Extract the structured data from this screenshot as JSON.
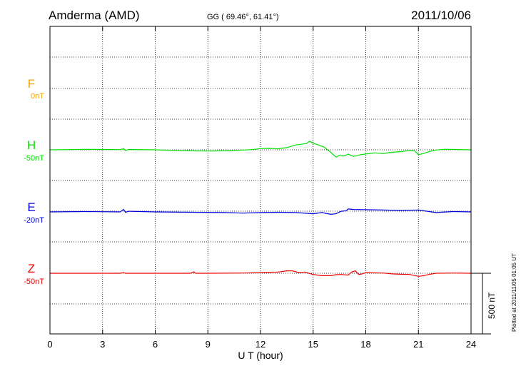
{
  "header": {
    "station": "Amderma (AMD)",
    "coords": "GG ( 69.46°,  61.41°)",
    "date": "2011/10/06"
  },
  "plotted_note": "Plotted at 2011/11/05 01:05 UT",
  "scale_label": "500 nT",
  "colors": {
    "F": "#f5a000",
    "H": "#00e000",
    "E": "#0000dd",
    "Z": "#ee0000",
    "grid": "#000000"
  },
  "chart_data": {
    "type": "line",
    "title": "",
    "xlabel": "U T (hour)",
    "ylabel": "",
    "xlim": [
      0,
      24
    ],
    "x_ticks": [
      "0",
      "3",
      "6",
      "9",
      "12",
      "15",
      "18",
      "21",
      "24"
    ],
    "grid": true,
    "series": [
      {
        "name": "F",
        "baseline": "0nT",
        "color": "#f5a000",
        "x": [],
        "values": []
      },
      {
        "name": "H",
        "baseline": "-50nT",
        "color": "#00e000",
        "x": [
          0,
          1,
          2,
          3,
          4,
          4.2,
          4.3,
          4.5,
          6,
          8,
          9,
          10,
          11,
          11.5,
          12,
          12.5,
          13,
          13.5,
          14,
          14.3,
          14.6,
          14.8,
          15,
          15.3,
          15.6,
          16,
          16.3,
          16.5,
          16.8,
          17,
          17.3,
          17.7,
          18,
          18.5,
          19,
          19.5,
          20,
          20.5,
          20.8,
          21,
          21.3,
          21.6,
          22,
          22.5,
          23,
          24
        ],
        "values": [
          0,
          2,
          4,
          3,
          2,
          10,
          -5,
          3,
          0,
          -8,
          -10,
          -8,
          -2,
          2,
          10,
          12,
          8,
          18,
          40,
          45,
          52,
          70,
          55,
          40,
          25,
          -20,
          -60,
          -45,
          -50,
          -35,
          -55,
          -40,
          -35,
          -25,
          -30,
          -20,
          -15,
          -5,
          -10,
          -40,
          -30,
          -15,
          -2,
          5,
          3,
          0
        ]
      },
      {
        "name": "E",
        "baseline": "-20nT",
        "color": "#0000dd",
        "x": [
          0,
          2,
          4,
          4.2,
          4.3,
          4.5,
          6,
          8,
          10,
          11,
          12,
          13,
          14,
          15,
          15.5,
          16,
          16.3,
          16.6,
          16.9,
          17,
          17.3,
          18,
          19,
          20,
          21,
          21.5,
          22,
          23,
          24
        ],
        "values": [
          0,
          3,
          0,
          20,
          -3,
          5,
          0,
          -3,
          -5,
          -10,
          -5,
          -3,
          -5,
          -15,
          -5,
          -20,
          -15,
          5,
          10,
          25,
          20,
          18,
          15,
          12,
          15,
          5,
          -5,
          3,
          0
        ]
      },
      {
        "name": "Z",
        "baseline": "-50nT",
        "color": "#ee0000",
        "x": [
          0,
          2,
          4,
          4.2,
          4.3,
          6,
          8,
          8.2,
          8.3,
          9,
          11,
          12,
          12.5,
          13,
          13.5,
          13.8,
          14.2,
          14.5,
          15,
          15.5,
          16,
          16.3,
          16.6,
          17,
          17.2,
          17.4,
          17.6,
          17.8,
          18,
          18.5,
          19,
          19.5,
          20,
          20.5,
          21,
          21.3,
          21.6,
          22,
          23,
          24
        ],
        "values": [
          0,
          0,
          0,
          5,
          0,
          0,
          0,
          12,
          0,
          0,
          2,
          5,
          8,
          10,
          20,
          20,
          5,
          10,
          -10,
          -20,
          -20,
          -12,
          -10,
          -15,
          10,
          20,
          -10,
          -5,
          5,
          3,
          2,
          -5,
          -8,
          -10,
          -25,
          -20,
          -10,
          0,
          2,
          0
        ]
      }
    ]
  }
}
